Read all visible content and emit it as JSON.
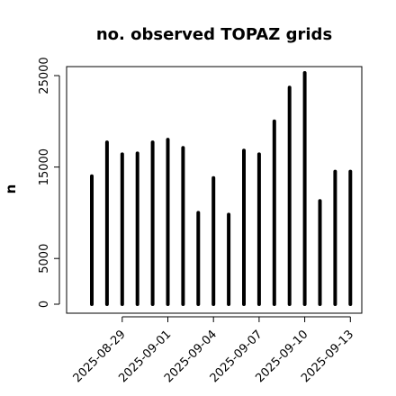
{
  "chart_data": {
    "type": "bar",
    "title": "no. observed TOPAZ grids",
    "xlabel": "",
    "ylabel": "n",
    "categories": [
      "2025-08-27",
      "2025-08-28",
      "2025-08-29",
      "2025-08-30",
      "2025-08-31",
      "2025-09-01",
      "2025-09-02",
      "2025-09-03",
      "2025-09-04",
      "2025-09-05",
      "2025-09-06",
      "2025-09-07",
      "2025-09-08",
      "2025-09-09",
      "2025-09-10",
      "2025-09-11",
      "2025-09-12",
      "2025-09-13"
    ],
    "values": [
      14000,
      17700,
      16400,
      16500,
      17700,
      18000,
      17100,
      10000,
      13800,
      9800,
      16800,
      16400,
      20000,
      23700,
      25300,
      11300,
      14500,
      14500
    ],
    "ylim": [
      0,
      26000
    ],
    "yticks": [
      0,
      5000,
      15000,
      25000
    ],
    "xtick_labels": [
      "2025-08-29",
      "2025-09-01",
      "2025-09-04",
      "2025-09-07",
      "2025-09-10",
      "2025-09-13"
    ],
    "highlight_label": "2025-09-04",
    "highlight_color": "#228b22",
    "bar_color": "#000000",
    "grid": false
  }
}
